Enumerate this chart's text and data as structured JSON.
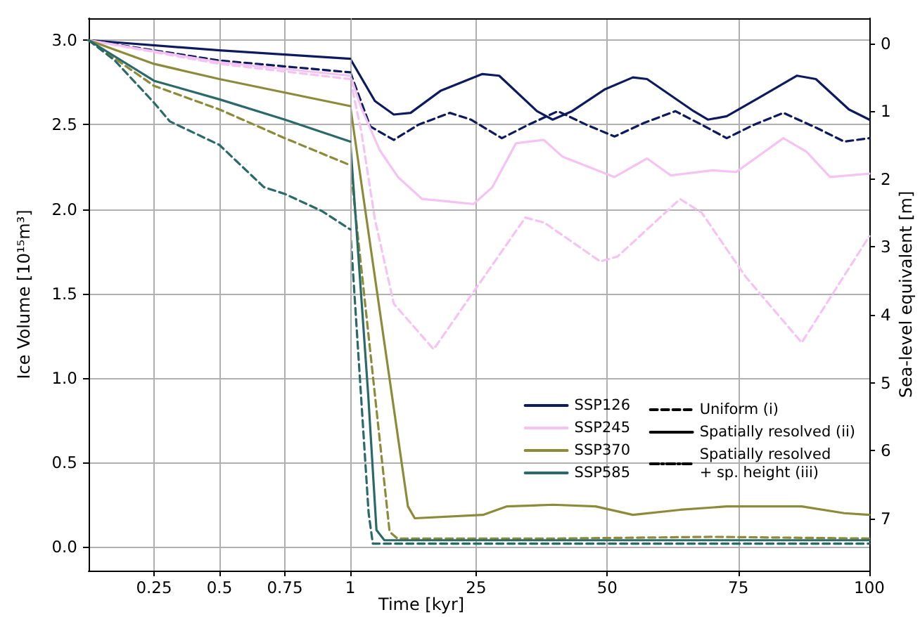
{
  "chart_data": [
    {
      "type": "line",
      "ylabel": "Ice Volume [10¹⁵m³]",
      "xlim": [
        0,
        1
      ],
      "xticks": [
        0.25,
        0.5,
        0.75,
        1
      ],
      "ylim": [
        -0.14,
        3.13
      ],
      "yticks": [
        {
          "value": 0,
          "label": "0.0"
        },
        {
          "value": 0.5,
          "label": "0.5"
        },
        {
          "value": 1,
          "label": "1.0"
        },
        {
          "value": 1.5,
          "label": "1.5"
        },
        {
          "value": 2,
          "label": "2.0"
        },
        {
          "value": 2.5,
          "label": "2.5"
        },
        {
          "value": 3,
          "label": "3.0"
        }
      ],
      "grid": true,
      "series": [
        {
          "color": "#0d1b5e",
          "line_style": "solid",
          "x": [
            0,
            0.5,
            1
          ],
          "values": [
            3.0,
            2.94,
            2.89
          ]
        },
        {
          "color": "#0d1b5e",
          "line_style": "dashed",
          "x": [
            0,
            0.5,
            1
          ],
          "values": [
            3.0,
            2.88,
            2.81
          ]
        },
        {
          "color": "#f5c3f2",
          "line_style": "solid",
          "x": [
            0,
            0.5,
            1
          ],
          "values": [
            3.0,
            2.87,
            2.79
          ]
        },
        {
          "color": "#f5c3f2",
          "line_style": "dashed",
          "x": [
            0,
            0.5,
            1
          ],
          "values": [
            3.0,
            2.86,
            2.77
          ]
        },
        {
          "color": "#8c8b3a",
          "line_style": "solid",
          "x": [
            0,
            0.25,
            0.5,
            0.75,
            1
          ],
          "values": [
            3.0,
            2.86,
            2.77,
            2.69,
            2.61
          ]
        },
        {
          "color": "#8c8b3a",
          "line_style": "dashed",
          "x": [
            0,
            0.25,
            0.5,
            0.75,
            1
          ],
          "values": [
            3.0,
            2.73,
            2.59,
            2.42,
            2.26
          ]
        },
        {
          "color": "#2b6a68",
          "line_style": "solid",
          "x": [
            0,
            0.25,
            0.5,
            0.75,
            1
          ],
          "values": [
            3.0,
            2.76,
            2.65,
            2.53,
            2.4
          ]
        },
        {
          "color": "#2b6a68",
          "line_style": "dashed",
          "x": [
            0,
            0.1,
            0.25,
            0.31,
            0.5,
            0.67,
            0.75,
            0.89,
            1
          ],
          "values": [
            3.0,
            2.88,
            2.63,
            2.52,
            2.38,
            2.13,
            2.09,
            1.99,
            1.88
          ]
        }
      ]
    },
    {
      "type": "line",
      "xlabel": "Time [kyr]",
      "y2label": "Sea-level equivalent [m]",
      "xlim": [
        1,
        100
      ],
      "xticks": [
        25,
        50,
        75,
        100
      ],
      "ylim": [
        -0.14,
        3.13
      ],
      "y2lim": [
        7.77,
        -0.37
      ],
      "y2ticks": [
        0,
        1,
        2,
        3,
        4,
        5,
        6,
        7
      ],
      "grid": true,
      "legend": "bottom right",
      "series": [
        {
          "name": "SSP126",
          "color": "#0d1b5e",
          "line_style": "solid",
          "x": [
            1,
            5.7,
            9.3,
            12.5,
            18.2,
            26.2,
            29.4,
            36.6,
            39.6,
            43.3,
            49.6,
            54.9,
            57.6,
            66.5,
            69.2,
            72.8,
            79,
            86.2,
            89.8,
            96.1,
            100
          ],
          "values": [
            2.89,
            2.64,
            2.56,
            2.57,
            2.7,
            2.8,
            2.79,
            2.58,
            2.53,
            2.58,
            2.71,
            2.78,
            2.77,
            2.58,
            2.53,
            2.55,
            2.66,
            2.79,
            2.77,
            2.59,
            2.53
          ]
        },
        {
          "color": "#0d1b5e",
          "line_style": "dashed",
          "x": [
            1,
            4.8,
            9.3,
            14,
            20,
            24,
            29.9,
            35,
            40.6,
            46,
            51.4,
            57,
            63,
            68,
            72.8,
            78,
            83.6,
            90,
            95.2,
            100
          ],
          "values": [
            2.81,
            2.49,
            2.41,
            2.5,
            2.57,
            2.53,
            2.42,
            2.5,
            2.58,
            2.5,
            2.43,
            2.51,
            2.58,
            2.5,
            2.42,
            2.5,
            2.57,
            2.48,
            2.4,
            2.42
          ]
        },
        {
          "name": "SSP245",
          "color": "#f5c3f2",
          "line_style": "solid",
          "x": [
            1,
            3.1,
            6.6,
            10.1,
            14.7,
            18.2,
            24.5,
            28.1,
            32.6,
            37.9,
            41.5,
            51.4,
            57.6,
            62.1,
            70.1,
            74.6,
            83.6,
            88,
            92.5,
            100
          ],
          "values": [
            2.79,
            2.6,
            2.35,
            2.19,
            2.06,
            2.05,
            2.03,
            2.13,
            2.39,
            2.41,
            2.31,
            2.19,
            2.3,
            2.2,
            2.23,
            2.22,
            2.42,
            2.34,
            2.19,
            2.21
          ]
        },
        {
          "color": "#f5c3f2",
          "line_style": "dashed",
          "x": [
            1,
            3.1,
            5.7,
            9.3,
            16.9,
            24.5,
            34.4,
            38,
            48.7,
            52,
            63.9,
            68,
            76.4,
            87.1,
            100
          ],
          "values": [
            2.77,
            2.46,
            1.94,
            1.44,
            1.17,
            1.51,
            1.95,
            1.92,
            1.69,
            1.72,
            2.06,
            1.98,
            1.6,
            1.21,
            1.84
          ]
        },
        {
          "name": "SSP370",
          "color": "#8c8b3a",
          "line_style": "solid",
          "x": [
            1,
            12,
            13.3,
            26.3,
            30.8,
            39.7,
            47.8,
            54.9,
            63.9,
            72.8,
            87.1,
            95.2,
            100
          ],
          "values": [
            2.61,
            0.24,
            0.17,
            0.19,
            0.24,
            0.25,
            0.24,
            0.19,
            0.22,
            0.24,
            0.24,
            0.2,
            0.19
          ]
        },
        {
          "color": "#8c8b3a",
          "line_style": "dashed",
          "x": [
            1,
            8.5,
            10,
            40,
            70,
            100
          ],
          "values": [
            2.26,
            0.09,
            0.05,
            0.05,
            0.06,
            0.05
          ]
        },
        {
          "name": "SSP585",
          "color": "#2b6a68",
          "line_style": "solid",
          "x": [
            1,
            4.4,
            6,
            7.5,
            100
          ],
          "values": [
            2.4,
            0.91,
            0.1,
            0.04,
            0.04
          ]
        },
        {
          "color": "#2b6a68",
          "line_style": "dashed",
          "x": [
            1,
            4.5,
            5.3,
            100
          ],
          "values": [
            1.88,
            0.2,
            0.02,
            0.02
          ]
        },
        {
          "name": "Uniform (i)",
          "color": "#000000",
          "line_style": "dashed"
        },
        {
          "name": "Spatially resolved (ii)",
          "color": "#000000",
          "line_style": "solid"
        },
        {
          "name": "Spatially resolved\n+ sp. height (iii)",
          "color": "#000000",
          "line_style": "dashdot"
        }
      ]
    }
  ]
}
